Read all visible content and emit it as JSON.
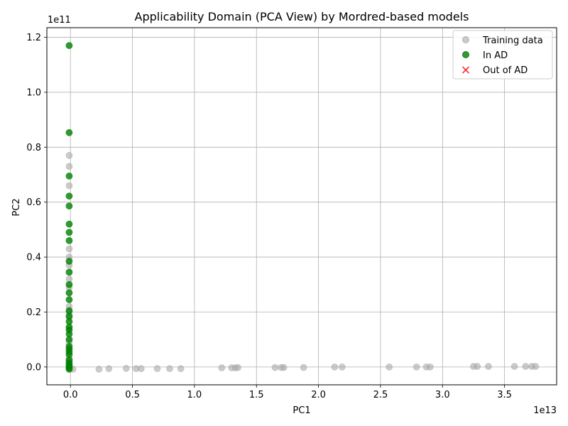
{
  "chart_data": {
    "type": "scatter",
    "title": "Applicability Domain (PCA View) by Mordred-based models",
    "xlabel": "PC1",
    "ylabel": "PC2",
    "x_offset_text": "1e13",
    "y_offset_text": "1e11",
    "xlim": [
      -0.19,
      3.92
    ],
    "ylim": [
      -0.065,
      1.235
    ],
    "x_ticks": [
      0.0,
      0.5,
      1.0,
      1.5,
      2.0,
      2.5,
      3.0,
      3.5
    ],
    "x_tick_labels": [
      "0.0",
      "0.5",
      "1.0",
      "1.5",
      "2.0",
      "2.5",
      "3.0",
      "3.5"
    ],
    "y_ticks": [
      0.0,
      0.2,
      0.4,
      0.6,
      0.8,
      1.0,
      1.2
    ],
    "y_tick_labels": [
      "0.0",
      "0.2",
      "0.4",
      "0.6",
      "0.8",
      "1.0",
      "1.2"
    ],
    "grid": true,
    "legend_position": "top-right",
    "series": [
      {
        "name": "Training data",
        "color": "#a9a9a9",
        "marker": "circle",
        "points": [
          [
            0.02,
            -0.008
          ],
          [
            0.23,
            -0.008
          ],
          [
            0.31,
            -0.006
          ],
          [
            0.45,
            -0.005
          ],
          [
            0.53,
            -0.006
          ],
          [
            0.57,
            -0.006
          ],
          [
            0.7,
            -0.006
          ],
          [
            0.8,
            -0.006
          ],
          [
            0.89,
            -0.006
          ],
          [
            1.22,
            -0.003
          ],
          [
            1.3,
            -0.003
          ],
          [
            1.33,
            -0.003
          ],
          [
            1.35,
            -0.002
          ],
          [
            1.65,
            -0.002
          ],
          [
            1.7,
            -0.002
          ],
          [
            1.72,
            -0.002
          ],
          [
            1.88,
            -0.002
          ],
          [
            2.13,
            0.0
          ],
          [
            2.19,
            0.0
          ],
          [
            2.57,
            0.0
          ],
          [
            2.79,
            0.0
          ],
          [
            2.87,
            0.0
          ],
          [
            2.9,
            0.0
          ],
          [
            3.25,
            0.002
          ],
          [
            3.28,
            0.002
          ],
          [
            3.37,
            0.002
          ],
          [
            3.58,
            0.002
          ],
          [
            3.67,
            0.002
          ],
          [
            3.72,
            0.002
          ],
          [
            3.75,
            0.002
          ],
          [
            -0.01,
            0.77
          ],
          [
            -0.01,
            0.73
          ],
          [
            -0.01,
            0.66
          ],
          [
            -0.01,
            0.43
          ],
          [
            -0.01,
            0.4
          ],
          [
            -0.01,
            0.37
          ],
          [
            -0.01,
            0.32
          ],
          [
            -0.01,
            0.29
          ],
          [
            -0.01,
            0.22
          ],
          [
            -0.01,
            0.2
          ],
          [
            -0.01,
            0.18
          ],
          [
            -0.01,
            0.09
          ],
          [
            -0.01,
            0.03
          ],
          [
            -0.01,
            0.0
          ]
        ]
      },
      {
        "name": "In AD",
        "color": "#008000",
        "marker": "circle",
        "points": [
          [
            -0.01,
            1.17
          ],
          [
            -0.01,
            0.853
          ],
          [
            -0.01,
            0.695
          ],
          [
            -0.01,
            0.622
          ],
          [
            -0.01,
            0.586
          ],
          [
            -0.01,
            0.52
          ],
          [
            -0.01,
            0.49
          ],
          [
            -0.01,
            0.46
          ],
          [
            -0.01,
            0.385
          ],
          [
            -0.01,
            0.345
          ],
          [
            -0.01,
            0.3
          ],
          [
            -0.01,
            0.27
          ],
          [
            -0.01,
            0.245
          ],
          [
            -0.01,
            0.205
          ],
          [
            -0.01,
            0.185
          ],
          [
            -0.01,
            0.165
          ],
          [
            -0.01,
            0.145
          ],
          [
            -0.01,
            0.135
          ],
          [
            -0.01,
            0.12
          ],
          [
            -0.01,
            0.1
          ],
          [
            -0.01,
            0.075
          ],
          [
            -0.01,
            0.065
          ],
          [
            -0.01,
            0.055
          ],
          [
            -0.01,
            0.045
          ],
          [
            -0.01,
            0.025
          ],
          [
            -0.01,
            0.015
          ],
          [
            -0.01,
            0.008
          ],
          [
            -0.01,
            0.002
          ],
          [
            -0.01,
            -0.003
          ],
          [
            -0.01,
            -0.008
          ]
        ]
      },
      {
        "name": "Out of AD",
        "color": "#ff0000",
        "marker": "x",
        "points": []
      }
    ]
  }
}
